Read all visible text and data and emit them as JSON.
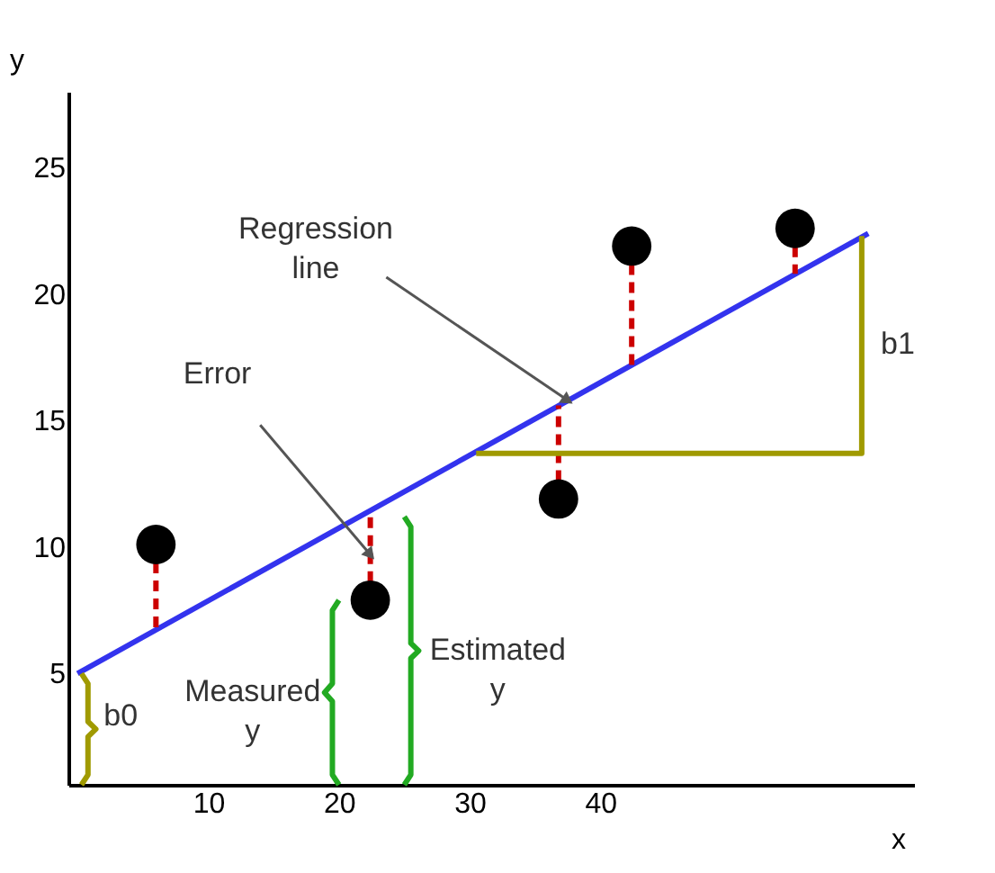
{
  "chart_data": {
    "type": "scatter",
    "xlabel": "x",
    "ylabel": "y",
    "xlim": [
      -0.7,
      64
    ],
    "ylim": [
      0.6,
      28
    ],
    "xticks": [
      10,
      20,
      30,
      40
    ],
    "yticks": [
      5,
      10,
      15,
      20,
      25
    ],
    "grid": false,
    "series": [
      {
        "type": "line",
        "color": "#3333ee",
        "x": [
          0,
          60.5
        ],
        "values": [
          5.0,
          22.4
        ]
      },
      {
        "type": "line",
        "color": "#cc0000",
        "line_style": "dashed",
        "x": [
          6,
          6
        ],
        "values": [
          10.1,
          6.7
        ]
      },
      {
        "type": "line",
        "color": "#cc0000",
        "line_style": "dashed",
        "x": [
          22.4,
          22.4
        ],
        "values": [
          7.9,
          11.45
        ]
      },
      {
        "type": "line",
        "color": "#cc0000",
        "line_style": "dashed",
        "x": [
          36.8,
          36.8
        ],
        "values": [
          11.9,
          15.6
        ]
      },
      {
        "type": "line",
        "color": "#cc0000",
        "line_style": "dashed",
        "x": [
          42.4,
          42.4
        ],
        "values": [
          21.9,
          17.2
        ]
      },
      {
        "type": "line",
        "color": "#cc0000",
        "line_style": "dashed",
        "x": [
          54.9,
          54.9
        ],
        "values": [
          22.6,
          20.8
        ]
      },
      {
        "type": "line",
        "color": "#a09a00",
        "x": [
          30.5,
          60,
          60
        ],
        "values": [
          13.7,
          13.7,
          22.3
        ]
      },
      {
        "type": "line",
        "color": "#a09a00",
        "x": [
          0.3,
          0.8,
          0.8,
          1.4,
          0.8,
          0.8,
          0.3
        ],
        "values": [
          0.6,
          1.0,
          2.5,
          2.8,
          3.1,
          4.6,
          5.0
        ]
      },
      {
        "type": "line",
        "color": "#22aa22",
        "x": [
          20,
          19.5,
          19.5,
          18.9,
          19.5,
          19.5,
          20
        ],
        "values": [
          0.6,
          1.0,
          3.9,
          4.25,
          4.6,
          7.5,
          7.9
        ]
      },
      {
        "type": "line",
        "color": "#22aa22",
        "x": [
          25,
          25.5,
          25.5,
          26.1,
          25.5,
          25.5,
          25
        ],
        "values": [
          0.6,
          1.0,
          5.6,
          5.9,
          6.2,
          10.8,
          11.2
        ]
      },
      {
        "color": "#000000",
        "marker": "circle",
        "x": [
          6,
          22.4,
          36.8,
          42.4,
          54.9
        ],
        "values": [
          10.1,
          7.9,
          11.9,
          21.9,
          22.6
        ]
      }
    ],
    "annotations": [
      {
        "text": "Regression line",
        "x": 37.5,
        "y": 15.8
      },
      {
        "text": "Error",
        "x": 22.4,
        "y": 9.7
      },
      {
        "text": "Measured y",
        "x": 18.9,
        "y": 4.25
      },
      {
        "text": "Estimated y",
        "x": 26.1,
        "y": 5.9
      },
      {
        "text": "b0",
        "x": 0,
        "y": 5.0
      },
      {
        "text": "b1",
        "x": 60,
        "y": 18
      }
    ]
  }
}
